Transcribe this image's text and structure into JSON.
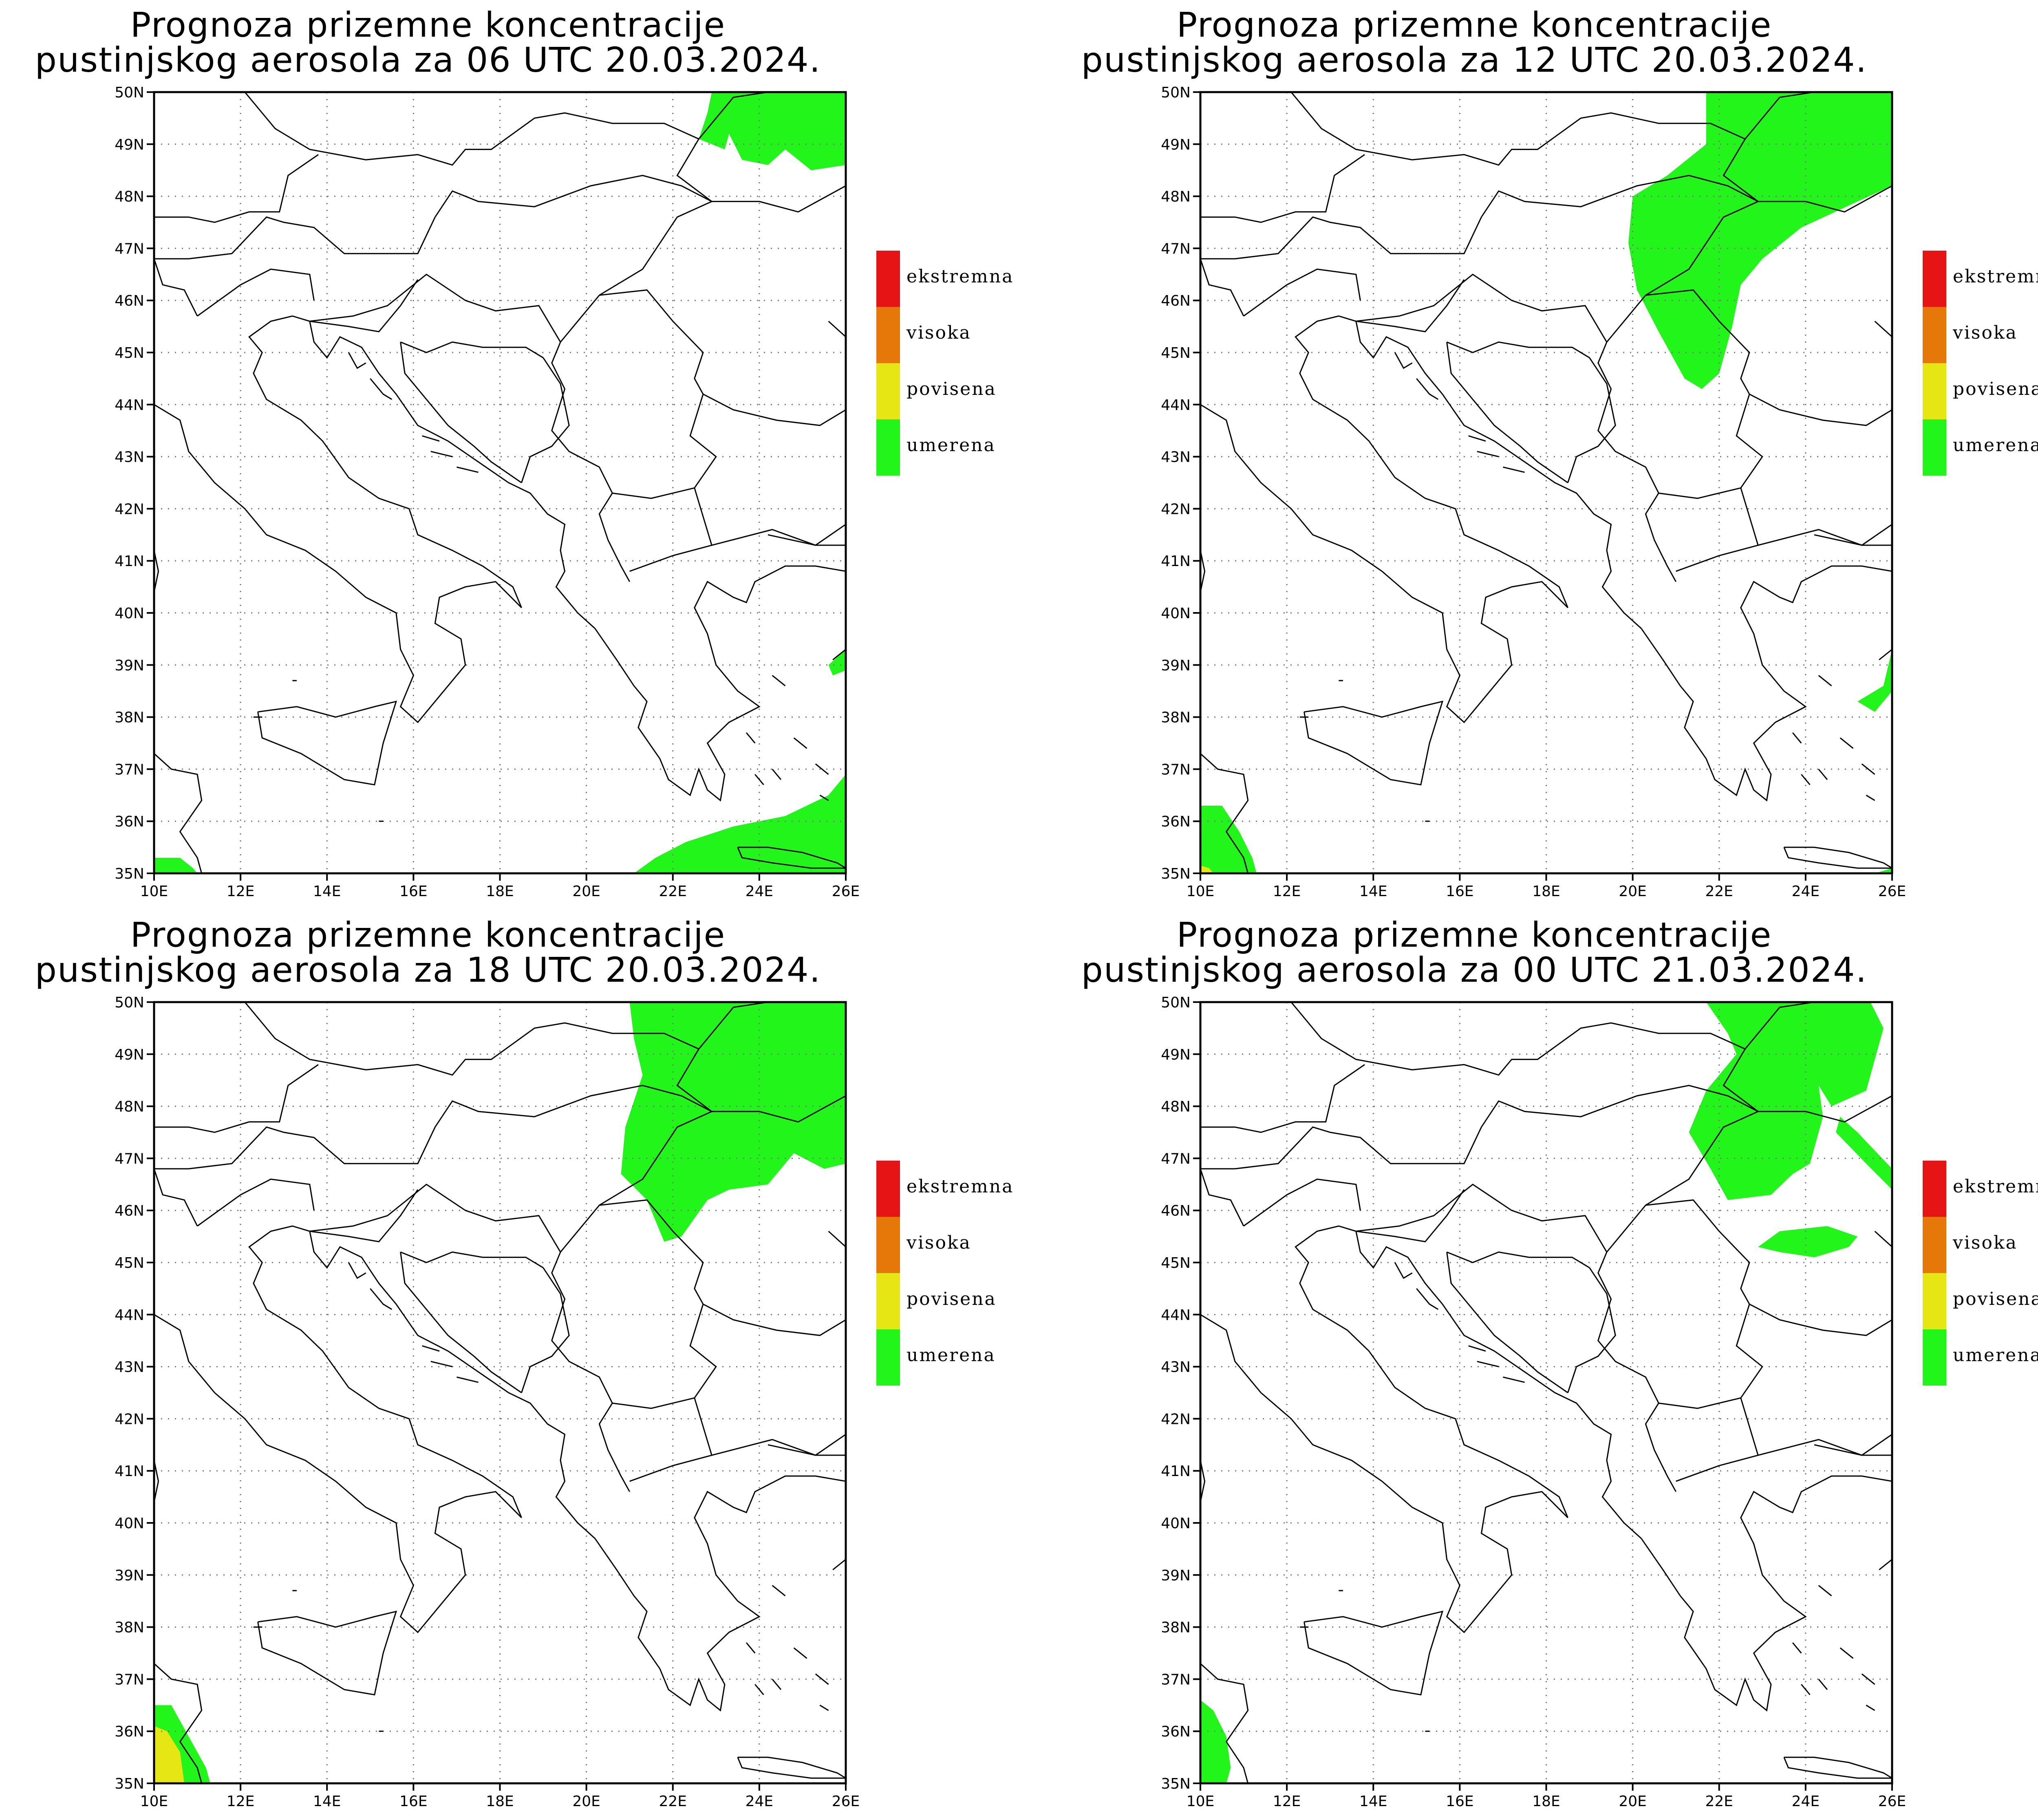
{
  "maps": [
    {
      "title_line1": "Prognoza prizemne koncentracije",
      "title_line2": "pustinjskog aerosola za 06 UTC 20.03.2024."
    },
    {
      "title_line1": "Prognoza prizemne koncentracije",
      "title_line2": "pustinjskog aerosola za 12 UTC 20.03.2024."
    },
    {
      "title_line1": "Prognoza prizemne koncentracije",
      "title_line2": "pustinjskog aerosola za 18 UTC 20.03.2024."
    },
    {
      "title_line1": "Prognoza prizemne koncentracije",
      "title_line2": "pustinjskog aerosola za 00 UTC 21.03.2024."
    }
  ],
  "axes": {
    "lat_labels": [
      "35N",
      "36N",
      "37N",
      "38N",
      "39N",
      "40N",
      "41N",
      "42N",
      "43N",
      "44N",
      "45N",
      "46N",
      "47N",
      "48N",
      "49N",
      "50N"
    ],
    "lon_labels": [
      "10E",
      "12E",
      "14E",
      "16E",
      "18E",
      "20E",
      "22E",
      "24E",
      "26E"
    ]
  },
  "legend": [
    {
      "label": "ekstremna",
      "color": "#e61414"
    },
    {
      "label": "visoka",
      "color": "#e6780a"
    },
    {
      "label": "povisena",
      "color": "#e6e614"
    },
    {
      "label": "umerena",
      "color": "#22f51a"
    }
  ],
  "colors": {
    "moderate": "#22f51a",
    "elevated": "#e6e614",
    "high": "#e6780a",
    "coast": "#000000",
    "grid": "#777777"
  }
}
